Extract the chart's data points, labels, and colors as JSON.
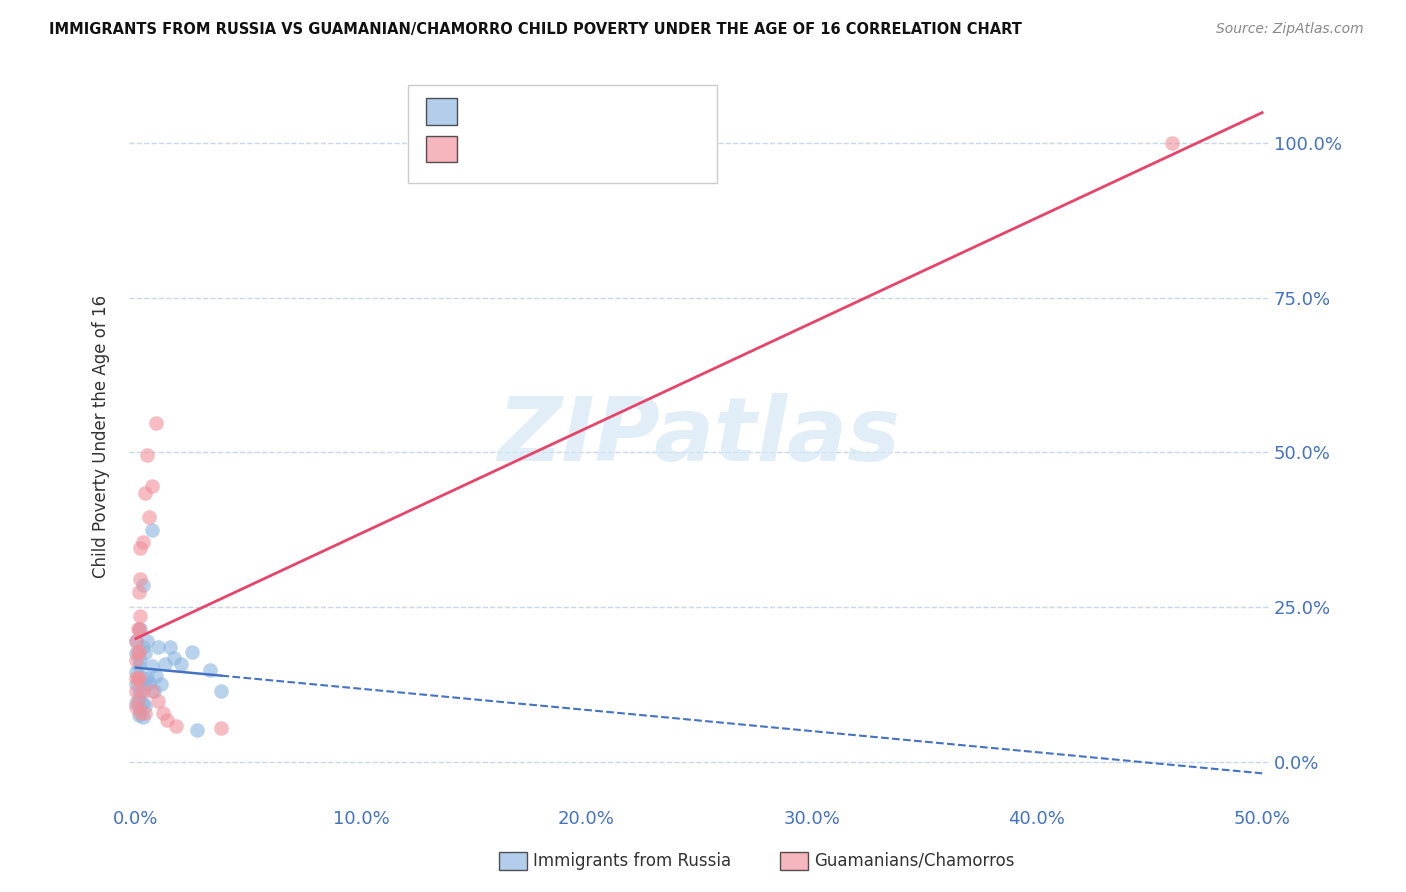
{
  "title": "IMMIGRANTS FROM RUSSIA VS GUAMANIAN/CHAMORRO CHILD POVERTY UNDER THE AGE OF 16 CORRELATION CHART",
  "source": "Source: ZipAtlas.com",
  "ylabel": "Child Poverty Under the Age of 16",
  "xlabel_ticks": [
    "0.0%",
    "10.0%",
    "20.0%",
    "30.0%",
    "40.0%",
    "50.0%"
  ],
  "ylabel_ticks": [
    "0.0%",
    "25.0%",
    "50.0%",
    "75.0%",
    "100.0%"
  ],
  "xlim": [
    0.0,
    0.5
  ],
  "ylim": [
    -0.07,
    1.12
  ],
  "watermark_text": "ZIPatlas",
  "russia_color": "#8ab4e0",
  "guam_color": "#f0909a",
  "russia_line_color": "#4472c4",
  "guam_line_color": "#e8446a",
  "background_color": "#ffffff",
  "grid_color": "#c8d8ea",
  "russia_points": [
    [
      0.0,
      0.175
    ],
    [
      0.0,
      0.195
    ],
    [
      0.0,
      0.145
    ],
    [
      0.0,
      0.125
    ],
    [
      0.0,
      0.095
    ],
    [
      0.0015,
      0.155
    ],
    [
      0.0015,
      0.105
    ],
    [
      0.0015,
      0.075
    ],
    [
      0.002,
      0.215
    ],
    [
      0.002,
      0.165
    ],
    [
      0.002,
      0.115
    ],
    [
      0.002,
      0.085
    ],
    [
      0.003,
      0.285
    ],
    [
      0.003,
      0.185
    ],
    [
      0.003,
      0.135
    ],
    [
      0.003,
      0.095
    ],
    [
      0.003,
      0.072
    ],
    [
      0.004,
      0.175
    ],
    [
      0.004,
      0.125
    ],
    [
      0.004,
      0.09
    ],
    [
      0.005,
      0.195
    ],
    [
      0.005,
      0.135
    ],
    [
      0.006,
      0.128
    ],
    [
      0.007,
      0.375
    ],
    [
      0.007,
      0.155
    ],
    [
      0.008,
      0.115
    ],
    [
      0.009,
      0.138
    ],
    [
      0.01,
      0.185
    ],
    [
      0.011,
      0.125
    ],
    [
      0.013,
      0.158
    ],
    [
      0.015,
      0.185
    ],
    [
      0.017,
      0.168
    ],
    [
      0.02,
      0.158
    ],
    [
      0.025,
      0.178
    ],
    [
      0.027,
      0.052
    ],
    [
      0.033,
      0.148
    ],
    [
      0.038,
      0.115
    ]
  ],
  "guam_points": [
    [
      0.0,
      0.195
    ],
    [
      0.0,
      0.165
    ],
    [
      0.0,
      0.135
    ],
    [
      0.0,
      0.115
    ],
    [
      0.0,
      0.088
    ],
    [
      0.001,
      0.215
    ],
    [
      0.001,
      0.178
    ],
    [
      0.001,
      0.135
    ],
    [
      0.001,
      0.098
    ],
    [
      0.0015,
      0.275
    ],
    [
      0.0015,
      0.215
    ],
    [
      0.0015,
      0.178
    ],
    [
      0.0015,
      0.135
    ],
    [
      0.002,
      0.345
    ],
    [
      0.002,
      0.295
    ],
    [
      0.002,
      0.235
    ],
    [
      0.002,
      0.078
    ],
    [
      0.003,
      0.355
    ],
    [
      0.003,
      0.115
    ],
    [
      0.004,
      0.435
    ],
    [
      0.004,
      0.078
    ],
    [
      0.005,
      0.495
    ],
    [
      0.006,
      0.395
    ],
    [
      0.007,
      0.445
    ],
    [
      0.007,
      0.115
    ],
    [
      0.009,
      0.548
    ],
    [
      0.01,
      0.098
    ],
    [
      0.012,
      0.078
    ],
    [
      0.014,
      0.068
    ],
    [
      0.018,
      0.058
    ],
    [
      0.038,
      0.055
    ],
    [
      0.46,
      1.0
    ]
  ],
  "russia_line_x_solid_end": 0.038,
  "russia_line_start_y": 0.158,
  "russia_line_end_y": 0.145
}
